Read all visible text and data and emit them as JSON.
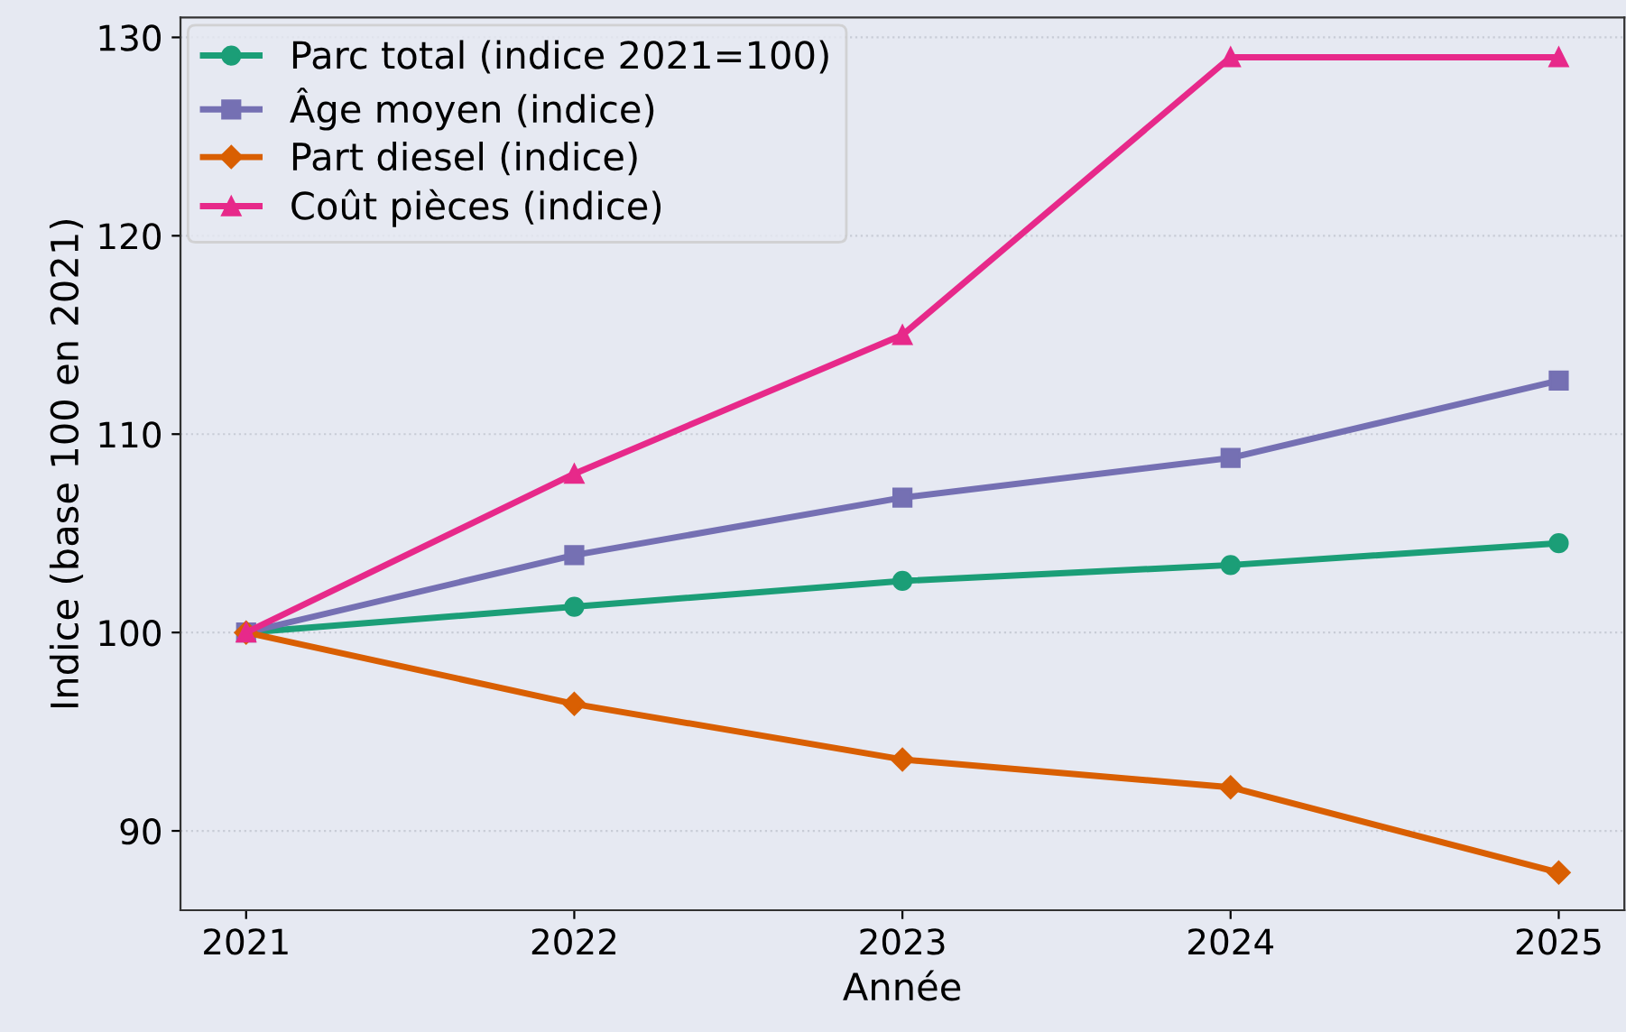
{
  "chart_data": {
    "type": "line",
    "xlabel": "Année",
    "ylabel": "Indice (base 100 en 2021)",
    "x": [
      2021,
      2022,
      2023,
      2024,
      2025
    ],
    "series": [
      {
        "name": "Parc total (indice 2021=100)",
        "color": "#1b9e77",
        "marker": "circle",
        "values": [
          100,
          101.3,
          102.6,
          103.4,
          104.5
        ]
      },
      {
        "name": "Âge moyen (indice)",
        "color": "#7570b3",
        "marker": "square",
        "values": [
          100,
          103.9,
          106.8,
          108.8,
          112.7
        ]
      },
      {
        "name": "Part diesel (indice)",
        "color": "#d95f02",
        "marker": "diamond",
        "values": [
          100,
          96.4,
          93.6,
          92.2,
          87.9
        ]
      },
      {
        "name": "Coût pièces (indice)",
        "color": "#e7298a",
        "marker": "triangle",
        "values": [
          100,
          108,
          115,
          129,
          129
        ]
      }
    ],
    "xlim": [
      2020.8,
      2025.2
    ],
    "xticks": [
      2021,
      2022,
      2023,
      2024,
      2025
    ],
    "ylim": [
      86,
      131
    ],
    "yticks": [
      90,
      100,
      110,
      120,
      130
    ],
    "grid": "y",
    "legend": "top left",
    "line_style": "solid"
  }
}
